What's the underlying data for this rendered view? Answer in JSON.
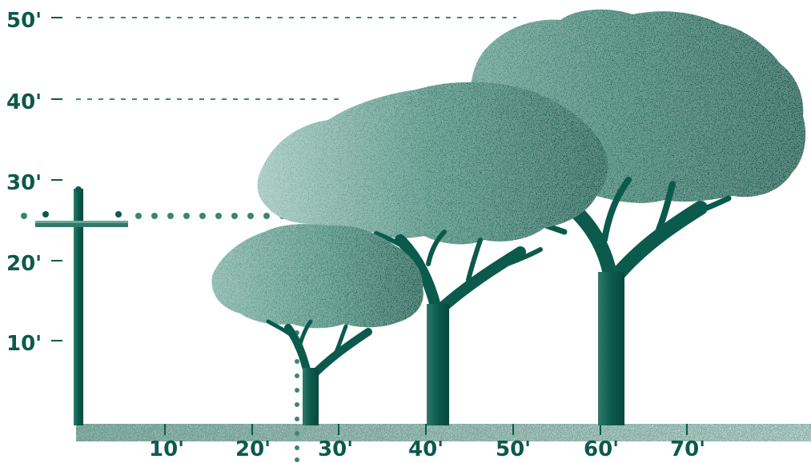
{
  "diagram": {
    "y_axis_labels": [
      "50'",
      "40'",
      "30'",
      "20'",
      "10'"
    ],
    "x_axis_labels": [
      "10'",
      "20'",
      "30'",
      "40'",
      "50'",
      "60'",
      "70'"
    ],
    "colors": {
      "primary": "#0b5a4c",
      "dark": "#064a3c",
      "canopy_light": "#6ca697",
      "canopy_mid": "#2f7a69",
      "ground": "#b7cdc6",
      "guide": "#0b5a4c",
      "background": "#ffffff"
    },
    "objects": [
      {
        "name": "utility-pole",
        "description_shown": "none"
      },
      {
        "name": "tree-small",
        "description_shown": "none"
      },
      {
        "name": "tree-medium",
        "description_shown": "none"
      },
      {
        "name": "tree-large",
        "description_shown": "none"
      }
    ]
  }
}
